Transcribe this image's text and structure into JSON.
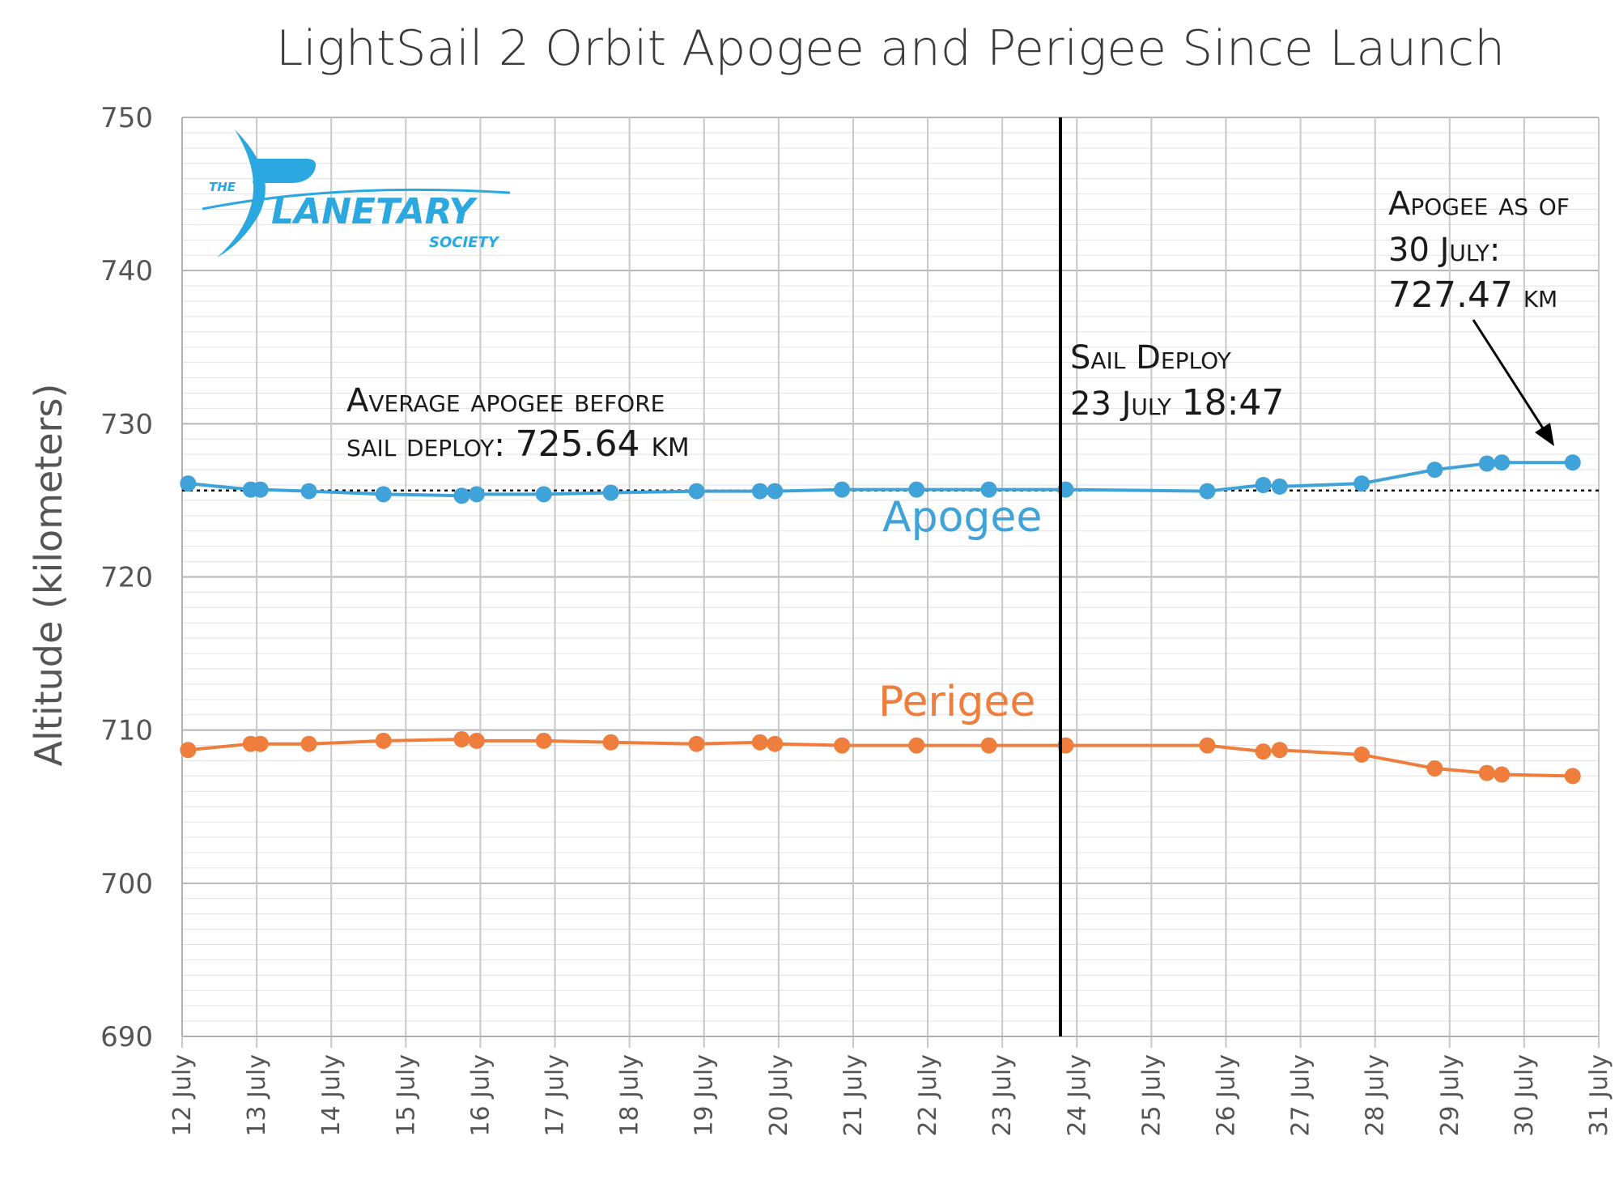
{
  "chart_data": {
    "type": "line",
    "title": "LightSail 2 Orbit Apogee and Perigee Since Launch",
    "ylabel": "Altitude (kilometers)",
    "xlabel": "",
    "ylim": [
      690,
      750
    ],
    "yticks": [
      "690",
      "700",
      "710",
      "720",
      "730",
      "740",
      "750"
    ],
    "xlim": [
      12,
      31
    ],
    "xticks": [
      "12 July",
      "13 July",
      "14 July",
      "15 July",
      "16 July",
      "17 July",
      "18 July",
      "19 July",
      "20 July",
      "21 July",
      "22 July",
      "23 July",
      "24 July",
      "25 July",
      "26 July",
      "27 July",
      "28 July",
      "29 July",
      "30 July",
      "31 July"
    ],
    "grid": true,
    "series": [
      {
        "name": "Apogee",
        "color": "#3fa2d9",
        "x": [
          12.08,
          12.92,
          13.05,
          13.7,
          14.7,
          15.75,
          15.95,
          16.85,
          17.75,
          18.9,
          19.75,
          19.95,
          20.85,
          21.85,
          22.82,
          23.85,
          25.75,
          26.5,
          26.72,
          27.82,
          28.8,
          29.5,
          29.7,
          30.65
        ],
        "y": [
          726.1,
          725.7,
          725.7,
          725.6,
          725.4,
          725.3,
          725.4,
          725.4,
          725.5,
          725.6,
          725.6,
          725.6,
          725.7,
          725.7,
          725.7,
          725.7,
          725.6,
          726.0,
          725.9,
          726.1,
          727.0,
          727.4,
          727.47,
          727.47
        ]
      },
      {
        "name": "Perigee",
        "color": "#ef7d3c",
        "x": [
          12.08,
          12.92,
          13.05,
          13.7,
          14.7,
          15.75,
          15.95,
          16.85,
          17.75,
          18.9,
          19.75,
          19.95,
          20.85,
          21.85,
          22.82,
          23.85,
          25.75,
          26.5,
          26.72,
          27.82,
          28.8,
          29.5,
          29.7,
          30.65
        ],
        "y": [
          708.7,
          709.1,
          709.1,
          709.1,
          709.3,
          709.4,
          709.3,
          709.3,
          709.2,
          709.1,
          709.2,
          709.1,
          709.0,
          709.0,
          709.0,
          709.0,
          709.0,
          708.6,
          708.7,
          708.4,
          707.5,
          707.2,
          707.1,
          707.0
        ]
      }
    ],
    "average_line": {
      "value": 725.64,
      "style": "dotted",
      "color": "#000000"
    },
    "deploy_line": {
      "x": 23.78,
      "color": "#000000"
    },
    "annotations": {
      "average": {
        "line1": "Average apogee before",
        "line2_prefix": "sail deploy:",
        "line2_value": "725.64 km"
      },
      "deploy": {
        "line1": "Sail Deploy",
        "line2_prefix": "23 July",
        "line2_value": "18:47"
      },
      "latest": {
        "line1": "Apogee as of",
        "line2": "30 July:",
        "line3_value": "727.47",
        "line3_unit": "km"
      }
    },
    "series_labels": {
      "apogee": "Apogee",
      "perigee": "Perigee"
    }
  },
  "logo": {
    "the": "THE",
    "name": "LANETARY",
    "society": "SOCIETY",
    "color": "#2ba8df"
  }
}
